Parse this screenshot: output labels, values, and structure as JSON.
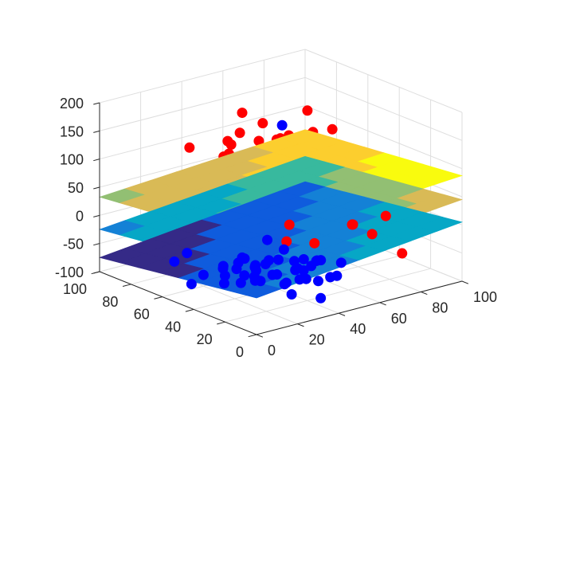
{
  "chart_data": {
    "type": "scatter",
    "title": "",
    "xlabel": "",
    "ylabel": "",
    "zlabel": "",
    "x_range": [
      0,
      100
    ],
    "y_range": [
      0,
      100
    ],
    "z_range": [
      -100,
      200
    ],
    "x_ticks": [
      "0",
      "20",
      "40",
      "60",
      "80",
      "100"
    ],
    "y_ticks": [
      "0",
      "20",
      "40",
      "60",
      "80",
      "100"
    ],
    "z_ticks": [
      "-100",
      "-50",
      "0",
      "50",
      "100",
      "150",
      "200"
    ],
    "grid": true,
    "box": false,
    "view": "3-D, default MATLAB angle",
    "colormap": "parula",
    "series": [
      {
        "color": "#ff0000",
        "marker": "filled circle",
        "points": [
          [
            49,
            82,
            42
          ],
          [
            8,
            93,
            28
          ],
          [
            55,
            52,
            125
          ],
          [
            61,
            41,
            110
          ],
          [
            40,
            63,
            150
          ],
          [
            52,
            60,
            96
          ],
          [
            70,
            55,
            100
          ],
          [
            45,
            55,
            78
          ],
          [
            66,
            39,
            130
          ],
          [
            58,
            40,
            160
          ],
          [
            35,
            62,
            135
          ],
          [
            48,
            50,
            145
          ],
          [
            62,
            66,
            116
          ],
          [
            75,
            45,
            85
          ],
          [
            52,
            35,
            101
          ],
          [
            40,
            70,
            105
          ],
          [
            56,
            48,
            80
          ],
          [
            42,
            48,
            90
          ],
          [
            67,
            32,
            95
          ],
          [
            32,
            58,
            102
          ],
          [
            58,
            72,
            140
          ],
          [
            72,
            60,
            120
          ],
          [
            50,
            40,
            70
          ],
          [
            44,
            76,
            117
          ],
          [
            63,
            51,
            90
          ],
          [
            55,
            28,
            65
          ],
          [
            39,
            45,
            60
          ],
          [
            78,
            55,
            65
          ],
          [
            69,
            70,
            80
          ],
          [
            52,
            66,
            60
          ],
          [
            30,
            82,
            112
          ],
          [
            26,
            55,
            130
          ],
          [
            86,
            40,
            35
          ],
          [
            90,
            35,
            15
          ],
          [
            95,
            65,
            20
          ],
          [
            60,
            20,
            25
          ],
          [
            28,
            48,
            15
          ],
          [
            45,
            38,
            10
          ],
          [
            82,
            25,
            5
          ],
          [
            80,
            12,
            -45
          ],
          [
            74,
            36,
            -15
          ],
          [
            36,
            28,
            0
          ],
          [
            66,
            25,
            5
          ],
          [
            70,
            18,
            -8
          ],
          [
            45,
            22,
            -5
          ],
          [
            62,
            62,
            20
          ],
          [
            55,
            75,
            30
          ],
          [
            38,
            32,
            140
          ],
          [
            48,
            72,
            168
          ],
          [
            66,
            54,
            175
          ],
          [
            54,
            55,
            115
          ],
          [
            60,
            58,
            132
          ],
          [
            46,
            44,
            110
          ],
          [
            72,
            46,
            145
          ],
          [
            50,
            64,
            125
          ],
          [
            57,
            44,
            92
          ],
          [
            64,
            60,
            105
          ],
          [
            43,
            58,
            82
          ],
          [
            68,
            42,
            78
          ],
          [
            53,
            70,
            88
          ]
        ]
      },
      {
        "color": "#0000ff",
        "marker": "filled circle",
        "points": [
          [
            25,
            77,
            -65
          ],
          [
            38,
            50,
            -78
          ],
          [
            45,
            45,
            -60
          ],
          [
            30,
            52,
            -70
          ],
          [
            50,
            38,
            -92
          ],
          [
            15,
            72,
            -65
          ],
          [
            42,
            42,
            -80
          ],
          [
            35,
            28,
            -75
          ],
          [
            52,
            30,
            -52
          ],
          [
            28,
            38,
            -66
          ],
          [
            48,
            28,
            -55
          ],
          [
            40,
            60,
            -70
          ],
          [
            22,
            50,
            -55
          ],
          [
            55,
            42,
            -85
          ],
          [
            32,
            62,
            -95
          ],
          [
            45,
            18,
            -98
          ],
          [
            58,
            35,
            -62
          ],
          [
            38,
            44,
            -60
          ],
          [
            20,
            60,
            -80
          ],
          [
            48,
            55,
            -75
          ],
          [
            62,
            30,
            -88
          ],
          [
            30,
            40,
            -50
          ],
          [
            40,
            30,
            -100
          ],
          [
            18,
            65,
            -100
          ],
          [
            55,
            25,
            -78
          ],
          [
            50,
            48,
            -50
          ],
          [
            35,
            55,
            -58
          ],
          [
            42,
            36,
            -88
          ],
          [
            26,
            44,
            -82
          ],
          [
            60,
            40,
            -70
          ],
          [
            45,
            60,
            -90
          ],
          [
            33,
            33,
            -62
          ],
          [
            58,
            22,
            -52
          ],
          [
            36,
            48,
            -92
          ],
          [
            28,
            58,
            -74
          ],
          [
            52,
            44,
            -68
          ],
          [
            44,
            26,
            -72
          ],
          [
            24,
            52,
            -90
          ],
          [
            40,
            64,
            -82
          ],
          [
            56,
            34,
            -96
          ],
          [
            85,
            95,
            85
          ],
          [
            75,
            85,
            15
          ],
          [
            22,
            65,
            62
          ],
          [
            96,
            20,
            30
          ],
          [
            48,
            56,
            -40
          ],
          [
            52,
            38,
            -58
          ],
          [
            34,
            42,
            -84
          ],
          [
            46,
            34,
            -64
          ],
          [
            30,
            47,
            -76
          ],
          [
            54,
            46,
            -88
          ]
        ]
      }
    ],
    "surfaces": [
      {
        "z_center": 60,
        "z_x_slope": 0.25,
        "z_y_slope": -0.3,
        "opacity": 1
      },
      {
        "z_center": 10,
        "z_x_slope": 0.35,
        "z_y_slope": -0.35,
        "opacity": 1
      },
      {
        "z_center": -35,
        "z_x_slope": 0.4,
        "z_y_slope": -0.4,
        "opacity": 1
      }
    ]
  }
}
